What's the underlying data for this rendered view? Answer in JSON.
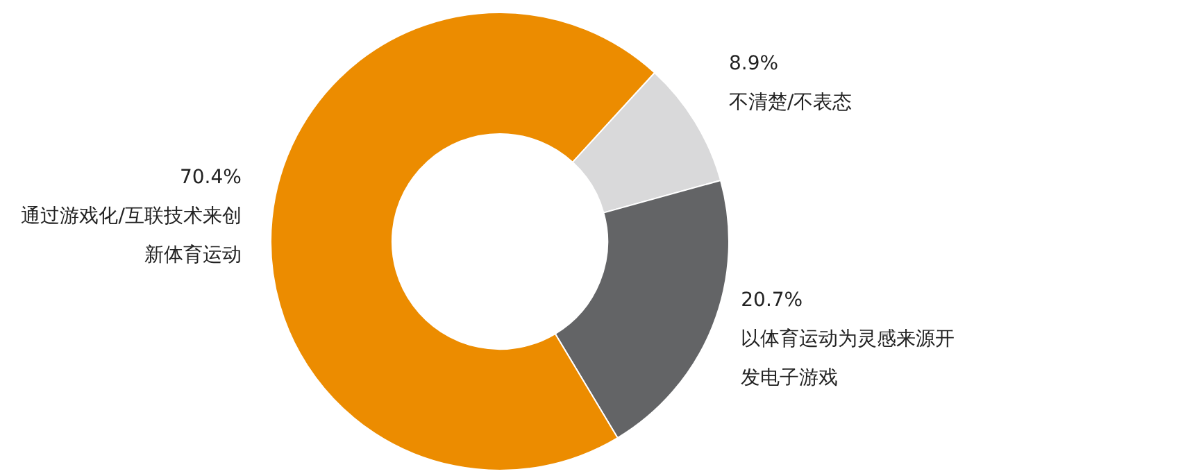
{
  "chart_data": {
    "type": "donut",
    "categories": [
      "不清楚/不表态",
      "以体育运动为灵感来源开发电子游戏",
      "通过游戏化/互联技术来创新体育运动"
    ],
    "values": [
      8.9,
      20.7,
      70.4
    ],
    "colors": [
      "#d9d9da",
      "#636466",
      "#ec8c00"
    ],
    "value_labels": [
      "8.9%",
      "20.7%",
      "70.4%"
    ],
    "legend": false
  }
}
